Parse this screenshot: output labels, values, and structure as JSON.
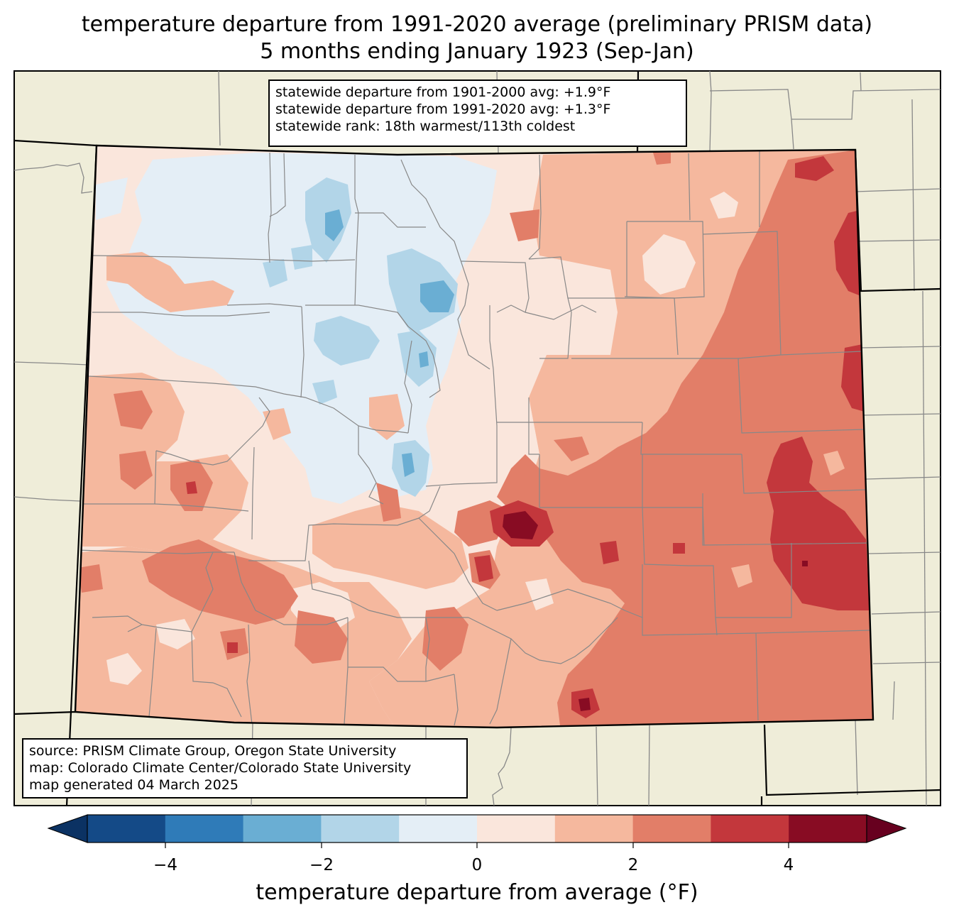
{
  "title": {
    "line1": "temperature departure from 1991-2020 average (preliminary PRISM data)",
    "line2": "5 months ending January 1923 (Sep-Jan)"
  },
  "stats": {
    "line1": "statewide departure from 1901-2000 avg: +1.9°F",
    "line2": "statewide departure from 1991-2020 avg: +1.3°F",
    "line3": "statewide rank: 18th warmest/113th coldest"
  },
  "source": {
    "line1": "source: PRISM Climate Group, Oregon State University",
    "line2": "map: Colorado Climate Center/Colorado State University",
    "line3": "map generated 04 March 2025"
  },
  "colorbar": {
    "label": "temperature departure from average (°F)",
    "ticks": [
      "−4",
      "−2",
      "0",
      "2",
      "4"
    ],
    "bins": [
      {
        "from": -5,
        "to": -4,
        "color": "#144a87"
      },
      {
        "from": -4,
        "to": -3,
        "color": "#2f7bb8"
      },
      {
        "from": -3,
        "to": -2,
        "color": "#6aaed3"
      },
      {
        "from": -2,
        "to": -1,
        "color": "#b2d5e8"
      },
      {
        "from": -1,
        "to": 0,
        "color": "#e4eef6"
      },
      {
        "from": 0,
        "to": 1,
        "color": "#fae6dc"
      },
      {
        "from": 1,
        "to": 2,
        "color": "#f5b89e"
      },
      {
        "from": 2,
        "to": 3,
        "color": "#e27e68"
      },
      {
        "from": 3,
        "to": 4,
        "color": "#c3373c"
      },
      {
        "from": 4,
        "to": 5,
        "color": "#880c23"
      }
    ],
    "under_color": "#0b3263",
    "over_color": "#67001f"
  },
  "colors": {
    "land": "#efedd9",
    "county_lines": "#888888",
    "state_lines": "#000000"
  }
}
